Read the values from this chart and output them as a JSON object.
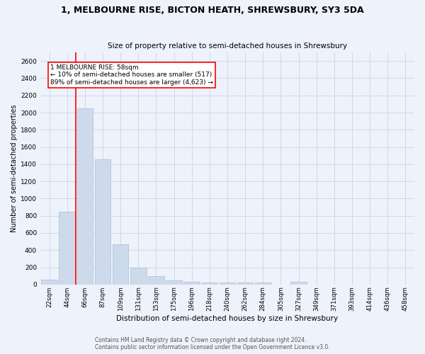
{
  "title": "1, MELBOURNE RISE, BICTON HEATH, SHREWSBURY, SY3 5DA",
  "subtitle": "Size of property relative to semi-detached houses in Shrewsbury",
  "xlabel": "Distribution of semi-detached houses by size in Shrewsbury",
  "ylabel": "Number of semi-detached properties",
  "footer_line1": "Contains HM Land Registry data © Crown copyright and database right 2024.",
  "footer_line2": "Contains public sector information licensed under the Open Government Licence v3.0.",
  "annotation_line1": "1 MELBOURNE RISE: 58sqm",
  "annotation_line2": "← 10% of semi-detached houses are smaller (517)",
  "annotation_line3": "89% of semi-detached houses are larger (4,623) →",
  "bar_color": "#ccdaeb",
  "bar_edgecolor": "#aabdd4",
  "vline_color": "red",
  "annotation_box_edgecolor": "red",
  "annotation_box_facecolor": "white",
  "background_color": "#eef2fb",
  "grid_color": "#d0d8ec",
  "categories": [
    "22sqm",
    "44sqm",
    "66sqm",
    "87sqm",
    "109sqm",
    "131sqm",
    "153sqm",
    "175sqm",
    "196sqm",
    "218sqm",
    "240sqm",
    "262sqm",
    "284sqm",
    "305sqm",
    "327sqm",
    "349sqm",
    "371sqm",
    "393sqm",
    "414sqm",
    "436sqm",
    "458sqm"
  ],
  "values": [
    55,
    850,
    2050,
    1460,
    470,
    200,
    95,
    45,
    35,
    25,
    20,
    25,
    20,
    0,
    30,
    0,
    0,
    0,
    0,
    0,
    0
  ],
  "ylim": [
    0,
    2700
  ],
  "yticks": [
    0,
    200,
    400,
    600,
    800,
    1000,
    1200,
    1400,
    1600,
    1800,
    2000,
    2200,
    2400,
    2600
  ],
  "vline_x": 1.5
}
